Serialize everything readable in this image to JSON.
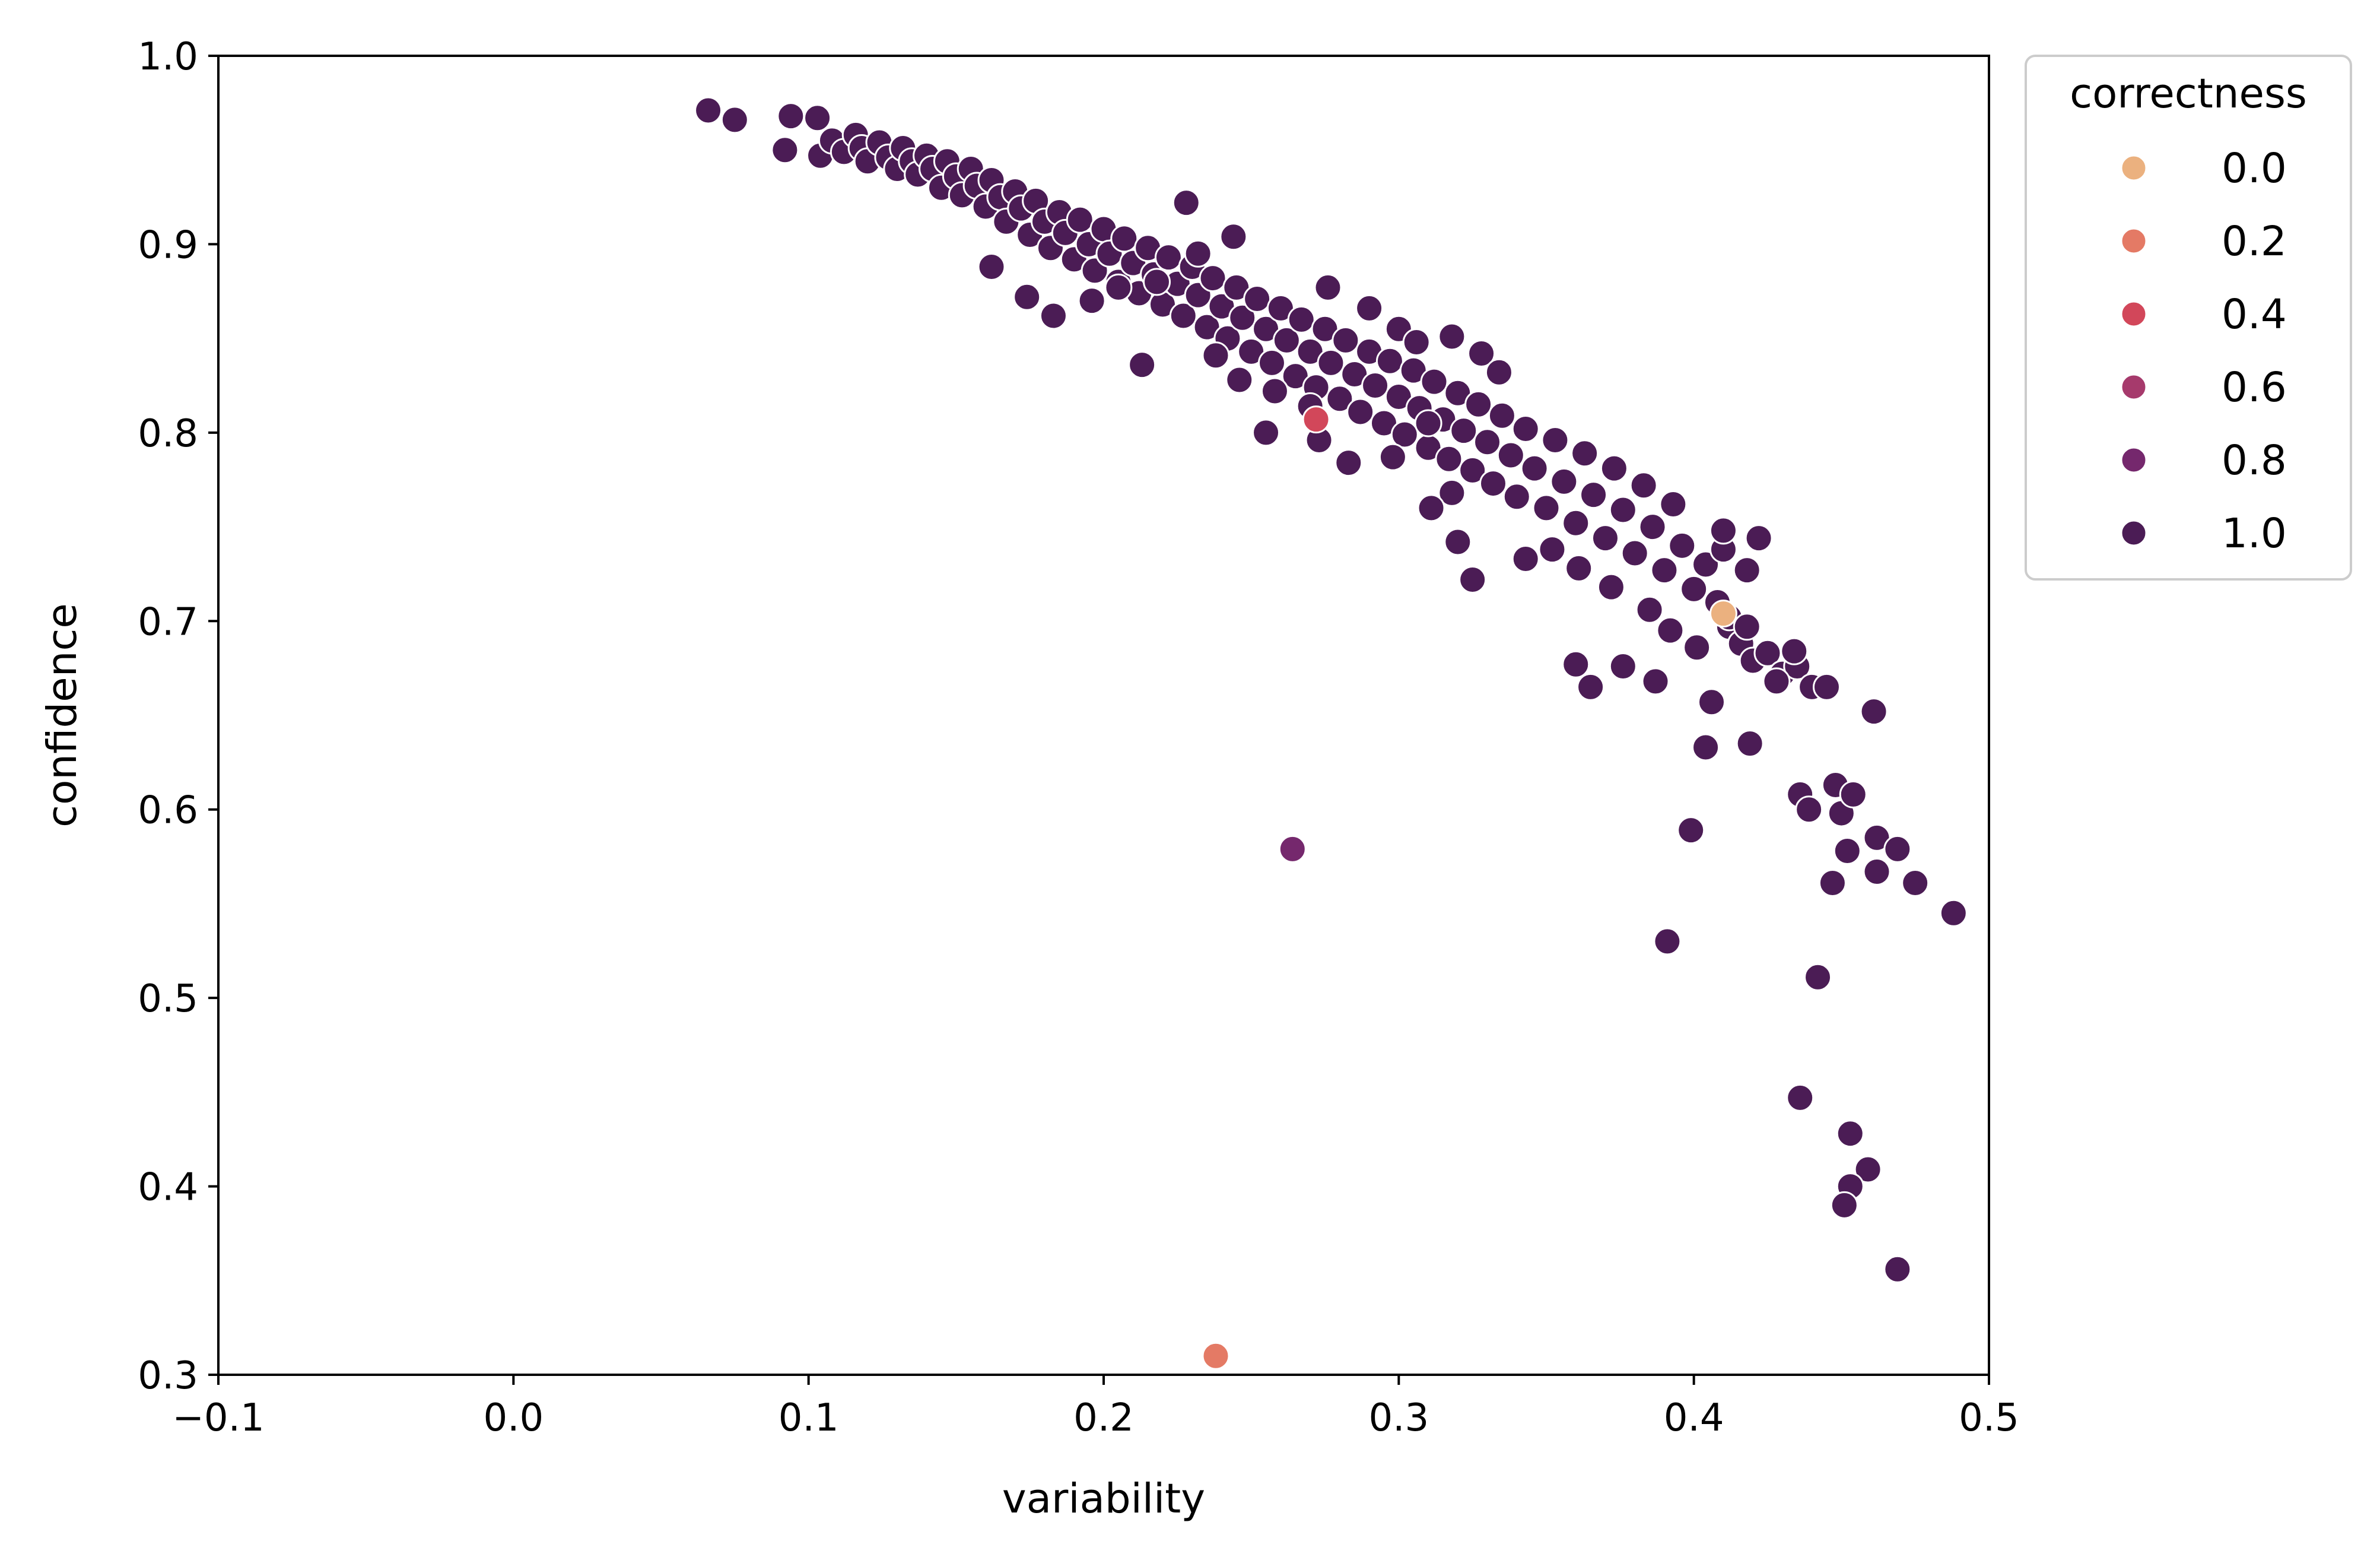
{
  "chart_data": {
    "type": "scatter",
    "title": "",
    "xlabel": "variability",
    "ylabel": "confidence",
    "xlim": [
      -0.1,
      0.5
    ],
    "ylim": [
      0.3,
      1.0
    ],
    "xticks": [
      -0.1,
      0.0,
      0.1,
      0.2,
      0.3,
      0.4,
      0.5
    ],
    "yticks": [
      0.3,
      0.4,
      0.5,
      0.6,
      0.7,
      0.8,
      0.9,
      1.0
    ],
    "xtick_labels": [
      "−0.1",
      "0.0",
      "0.1",
      "0.2",
      "0.3",
      "0.4",
      "0.5"
    ],
    "ytick_labels": [
      "0.3",
      "0.4",
      "0.5",
      "0.6",
      "0.7",
      "0.8",
      "0.9",
      "1.0"
    ],
    "grid": false,
    "legend": {
      "title": "correctness",
      "placement": "outside-top-right",
      "entries": [
        {
          "label": "0.0",
          "color": "#ebb17f"
        },
        {
          "label": "0.2",
          "color": "#e47a65"
        },
        {
          "label": "0.4",
          "color": "#d2475a"
        },
        {
          "label": "0.6",
          "color": "#a63a6c"
        },
        {
          "label": "0.8",
          "color": "#75286d"
        },
        {
          "label": "1.0",
          "color": "#4b1c55"
        }
      ]
    },
    "colors": {
      "0.0": "#ebb17f",
      "0.2": "#e47a65",
      "0.4": "#d2475a",
      "0.6": "#a63a6c",
      "0.8": "#75286d",
      "1.0": "#4b1c55"
    },
    "series": [
      {
        "correctness": "0.0",
        "points": [
          [
            0.41,
            0.704
          ]
        ]
      },
      {
        "correctness": "0.2",
        "points": [
          [
            0.238,
            0.31
          ]
        ]
      },
      {
        "correctness": "0.4",
        "points": [
          [
            0.272,
            0.807
          ]
        ]
      },
      {
        "correctness": "0.8",
        "points": [
          [
            0.264,
            0.579
          ]
        ]
      },
      {
        "correctness": "1.0",
        "points": [
          [
            0.066,
            0.971
          ],
          [
            0.075,
            0.966
          ],
          [
            0.092,
            0.95
          ],
          [
            0.094,
            0.968
          ],
          [
            0.103,
            0.967
          ],
          [
            0.104,
            0.947
          ],
          [
            0.108,
            0.955
          ],
          [
            0.112,
            0.949
          ],
          [
            0.116,
            0.958
          ],
          [
            0.118,
            0.951
          ],
          [
            0.12,
            0.944
          ],
          [
            0.124,
            0.954
          ],
          [
            0.127,
            0.946
          ],
          [
            0.13,
            0.94
          ],
          [
            0.132,
            0.951
          ],
          [
            0.135,
            0.944
          ],
          [
            0.137,
            0.937
          ],
          [
            0.14,
            0.947
          ],
          [
            0.142,
            0.94
          ],
          [
            0.145,
            0.93
          ],
          [
            0.147,
            0.944
          ],
          [
            0.15,
            0.936
          ],
          [
            0.152,
            0.926
          ],
          [
            0.155,
            0.94
          ],
          [
            0.157,
            0.931
          ],
          [
            0.16,
            0.92
          ],
          [
            0.162,
            0.934
          ],
          [
            0.165,
            0.925
          ],
          [
            0.167,
            0.912
          ],
          [
            0.17,
            0.928
          ],
          [
            0.172,
            0.919
          ],
          [
            0.175,
            0.905
          ],
          [
            0.177,
            0.923
          ],
          [
            0.18,
            0.912
          ],
          [
            0.182,
            0.898
          ],
          [
            0.185,
            0.917
          ],
          [
            0.187,
            0.906
          ],
          [
            0.19,
            0.892
          ],
          [
            0.192,
            0.913
          ],
          [
            0.195,
            0.9
          ],
          [
            0.197,
            0.886
          ],
          [
            0.2,
            0.908
          ],
          [
            0.202,
            0.895
          ],
          [
            0.205,
            0.88
          ],
          [
            0.207,
            0.903
          ],
          [
            0.21,
            0.89
          ],
          [
            0.212,
            0.874
          ],
          [
            0.215,
            0.898
          ],
          [
            0.217,
            0.884
          ],
          [
            0.22,
            0.868
          ],
          [
            0.222,
            0.893
          ],
          [
            0.225,
            0.879
          ],
          [
            0.227,
            0.862
          ],
          [
            0.23,
            0.888
          ],
          [
            0.232,
            0.873
          ],
          [
            0.235,
            0.856
          ],
          [
            0.237,
            0.882
          ],
          [
            0.24,
            0.867
          ],
          [
            0.242,
            0.85
          ],
          [
            0.245,
            0.877
          ],
          [
            0.247,
            0.861
          ],
          [
            0.25,
            0.843
          ],
          [
            0.252,
            0.871
          ],
          [
            0.255,
            0.855
          ],
          [
            0.257,
            0.837
          ],
          [
            0.26,
            0.866
          ],
          [
            0.262,
            0.849
          ],
          [
            0.265,
            0.83
          ],
          [
            0.267,
            0.86
          ],
          [
            0.27,
            0.843
          ],
          [
            0.272,
            0.824
          ],
          [
            0.275,
            0.855
          ],
          [
            0.277,
            0.837
          ],
          [
            0.28,
            0.818
          ],
          [
            0.282,
            0.849
          ],
          [
            0.285,
            0.831
          ],
          [
            0.287,
            0.811
          ],
          [
            0.29,
            0.843
          ],
          [
            0.292,
            0.825
          ],
          [
            0.295,
            0.805
          ],
          [
            0.297,
            0.838
          ],
          [
            0.3,
            0.819
          ],
          [
            0.302,
            0.799
          ],
          [
            0.305,
            0.833
          ],
          [
            0.307,
            0.813
          ],
          [
            0.31,
            0.792
          ],
          [
            0.312,
            0.827
          ],
          [
            0.315,
            0.807
          ],
          [
            0.317,
            0.786
          ],
          [
            0.32,
            0.821
          ],
          [
            0.322,
            0.801
          ],
          [
            0.325,
            0.78
          ],
          [
            0.327,
            0.815
          ],
          [
            0.33,
            0.795
          ],
          [
            0.332,
            0.773
          ],
          [
            0.335,
            0.809
          ],
          [
            0.338,
            0.788
          ],
          [
            0.34,
            0.766
          ],
          [
            0.343,
            0.802
          ],
          [
            0.346,
            0.781
          ],
          [
            0.35,
            0.76
          ],
          [
            0.353,
            0.796
          ],
          [
            0.356,
            0.774
          ],
          [
            0.36,
            0.752
          ],
          [
            0.363,
            0.789
          ],
          [
            0.366,
            0.767
          ],
          [
            0.37,
            0.744
          ],
          [
            0.373,
            0.781
          ],
          [
            0.376,
            0.759
          ],
          [
            0.38,
            0.736
          ],
          [
            0.383,
            0.772
          ],
          [
            0.386,
            0.75
          ],
          [
            0.39,
            0.727
          ],
          [
            0.393,
            0.762
          ],
          [
            0.396,
            0.74
          ],
          [
            0.4,
            0.717
          ],
          [
            0.404,
            0.73
          ],
          [
            0.408,
            0.71
          ],
          [
            0.412,
            0.697
          ],
          [
            0.416,
            0.688
          ],
          [
            0.42,
            0.679
          ],
          [
            0.425,
            0.683
          ],
          [
            0.43,
            0.672
          ],
          [
            0.435,
            0.676
          ],
          [
            0.44,
            0.665
          ],
          [
            0.228,
            0.922
          ],
          [
            0.213,
            0.836
          ],
          [
            0.183,
            0.862
          ],
          [
            0.174,
            0.872
          ],
          [
            0.162,
            0.888
          ],
          [
            0.238,
            0.841
          ],
          [
            0.246,
            0.828
          ],
          [
            0.258,
            0.822
          ],
          [
            0.27,
            0.814
          ],
          [
            0.276,
            0.877
          ],
          [
            0.29,
            0.866
          ],
          [
            0.3,
            0.855
          ],
          [
            0.306,
            0.848
          ],
          [
            0.318,
            0.851
          ],
          [
            0.328,
            0.842
          ],
          [
            0.334,
            0.832
          ],
          [
            0.325,
            0.722
          ],
          [
            0.32,
            0.742
          ],
          [
            0.318,
            0.768
          ],
          [
            0.311,
            0.76
          ],
          [
            0.343,
            0.733
          ],
          [
            0.352,
            0.738
          ],
          [
            0.361,
            0.728
          ],
          [
            0.372,
            0.718
          ],
          [
            0.385,
            0.706
          ],
          [
            0.392,
            0.695
          ],
          [
            0.401,
            0.686
          ],
          [
            0.41,
            0.738
          ],
          [
            0.41,
            0.748
          ],
          [
            0.418,
            0.727
          ],
          [
            0.422,
            0.744
          ],
          [
            0.412,
            0.702
          ],
          [
            0.418,
            0.697
          ],
          [
            0.365,
            0.665
          ],
          [
            0.36,
            0.677
          ],
          [
            0.376,
            0.676
          ],
          [
            0.387,
            0.668
          ],
          [
            0.406,
            0.657
          ],
          [
            0.404,
            0.633
          ],
          [
            0.419,
            0.635
          ],
          [
            0.428,
            0.668
          ],
          [
            0.434,
            0.684
          ],
          [
            0.445,
            0.665
          ],
          [
            0.436,
            0.608
          ],
          [
            0.439,
            0.6
          ],
          [
            0.448,
            0.613
          ],
          [
            0.45,
            0.598
          ],
          [
            0.454,
            0.608
          ],
          [
            0.447,
            0.561
          ],
          [
            0.452,
            0.578
          ],
          [
            0.461,
            0.652
          ],
          [
            0.462,
            0.585
          ],
          [
            0.462,
            0.567
          ],
          [
            0.469,
            0.579
          ],
          [
            0.475,
            0.561
          ],
          [
            0.488,
            0.545
          ],
          [
            0.399,
            0.589
          ],
          [
            0.391,
            0.53
          ],
          [
            0.442,
            0.511
          ],
          [
            0.436,
            0.447
          ],
          [
            0.453,
            0.428
          ],
          [
            0.459,
            0.409
          ],
          [
            0.453,
            0.4
          ],
          [
            0.451,
            0.39
          ],
          [
            0.469,
            0.356
          ],
          [
            0.255,
            0.8
          ],
          [
            0.273,
            0.796
          ],
          [
            0.283,
            0.784
          ],
          [
            0.298,
            0.787
          ],
          [
            0.31,
            0.805
          ],
          [
            0.196,
            0.87
          ],
          [
            0.205,
            0.877
          ],
          [
            0.218,
            0.88
          ],
          [
            0.232,
            0.895
          ],
          [
            0.244,
            0.904
          ]
        ]
      }
    ]
  }
}
